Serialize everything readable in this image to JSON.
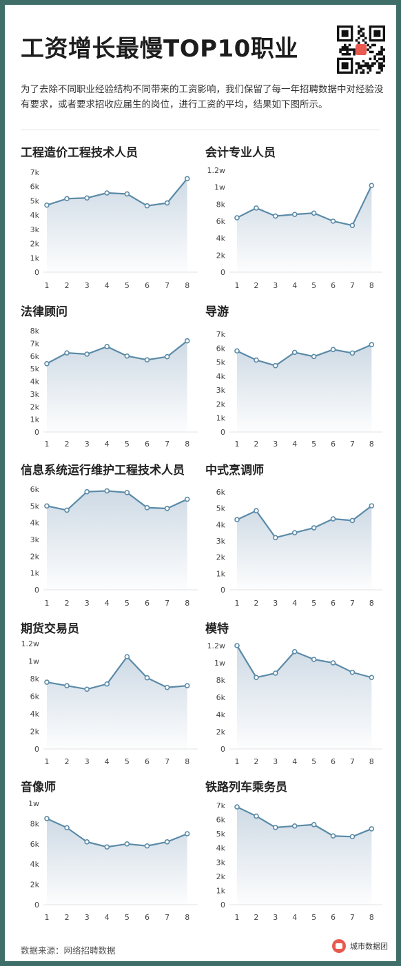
{
  "header": {
    "title": "工资增长最慢TOP10职业",
    "intro": "为了去除不同职业经验结构不同带来的工资影响，我们保留了每一年招聘数据中对经验没有要求，或者要求招收应届生的岗位，进行工资的平均，结果如下图所示。"
  },
  "footer": {
    "source": "数据来源：网络招聘数据",
    "brand": "城市数据团"
  },
  "colors": {
    "line": "#5a8aa8",
    "fill_top": "#c9d6e2",
    "frame": "#3f6e69"
  },
  "chart_data": [
    {
      "type": "area",
      "title": "工程造价工程技术人员",
      "x": [
        1,
        2,
        3,
        4,
        5,
        6,
        7,
        8
      ],
      "values": [
        4700,
        5150,
        5200,
        5550,
        5480,
        4650,
        4850,
        6550
      ],
      "ylim": [
        0,
        7000
      ],
      "yticks": [
        0,
        1000,
        2000,
        3000,
        4000,
        5000,
        6000,
        7000
      ],
      "ytick_labels": [
        "0",
        "1k",
        "2k",
        "3k",
        "4k",
        "5k",
        "6k",
        "7k"
      ],
      "grid": false
    },
    {
      "type": "area",
      "title": "会计专业人员",
      "x": [
        1,
        2,
        3,
        4,
        5,
        6,
        7,
        8
      ],
      "values": [
        6400,
        7550,
        6600,
        6800,
        6950,
        6000,
        5500,
        10200
      ],
      "ylim": [
        0,
        12000
      ],
      "yticks": [
        0,
        2000,
        4000,
        6000,
        8000,
        10000,
        12000
      ],
      "ytick_labels": [
        "0",
        "2k",
        "4k",
        "6k",
        "8k",
        "1w",
        "1.2w"
      ],
      "grid": false
    },
    {
      "type": "area",
      "title": "法律顾问",
      "x": [
        1,
        2,
        3,
        4,
        5,
        6,
        7,
        8
      ],
      "values": [
        5400,
        6250,
        6150,
        6750,
        6000,
        5700,
        5950,
        7200
      ],
      "ylim": [
        0,
        8000
      ],
      "yticks": [
        0,
        1000,
        2000,
        3000,
        4000,
        5000,
        6000,
        7000,
        8000
      ],
      "ytick_labels": [
        "0",
        "1k",
        "2k",
        "3k",
        "4k",
        "5k",
        "6k",
        "7k",
        "8k"
      ],
      "grid": false
    },
    {
      "type": "area",
      "title": "导游",
      "x": [
        1,
        2,
        3,
        4,
        5,
        6,
        7,
        8
      ],
      "values": [
        5800,
        5150,
        4750,
        5700,
        5400,
        5900,
        5650,
        6250
      ],
      "ylim": [
        0,
        7000
      ],
      "yticks": [
        0,
        1000,
        2000,
        3000,
        4000,
        5000,
        6000,
        7000
      ],
      "ytick_labels": [
        "0",
        "1k",
        "2k",
        "3k",
        "4k",
        "5k",
        "6k",
        "7k"
      ],
      "grid": false
    },
    {
      "type": "area",
      "title": "信息系统运行维护工程技术人员",
      "x": [
        1,
        2,
        3,
        4,
        5,
        6,
        7,
        8
      ],
      "values": [
        5000,
        4750,
        5850,
        5900,
        5800,
        4900,
        4850,
        5400
      ],
      "ylim": [
        0,
        6000
      ],
      "yticks": [
        0,
        1000,
        2000,
        3000,
        4000,
        5000,
        6000
      ],
      "ytick_labels": [
        "0",
        "1k",
        "2k",
        "3k",
        "4k",
        "5k",
        "6k"
      ],
      "grid": false
    },
    {
      "type": "area",
      "title": "中式烹调师",
      "x": [
        1,
        2,
        3,
        4,
        5,
        6,
        7,
        8
      ],
      "values": [
        4300,
        4850,
        3200,
        3500,
        3800,
        4350,
        4250,
        5150
      ],
      "ylim": [
        0,
        6000
      ],
      "yticks": [
        0,
        1000,
        2000,
        3000,
        4000,
        5000,
        6000
      ],
      "ytick_labels": [
        "0",
        "1k",
        "2k",
        "3k",
        "4k",
        "5k",
        "6k"
      ],
      "grid": false
    },
    {
      "type": "area",
      "title": "期货交易员",
      "x": [
        1,
        2,
        3,
        4,
        5,
        6,
        7,
        8
      ],
      "values": [
        7600,
        7200,
        6800,
        7400,
        10500,
        8100,
        7000,
        7200
      ],
      "ylim": [
        0,
        12000
      ],
      "yticks": [
        0,
        2000,
        4000,
        6000,
        8000,
        10000,
        12000
      ],
      "ytick_labels": [
        "0",
        "2k",
        "4k",
        "6k",
        "8k",
        "1w",
        "1.2w"
      ],
      "grid": false
    },
    {
      "type": "area",
      "title": "模特",
      "x": [
        1,
        2,
        3,
        4,
        5,
        6,
        7,
        8
      ],
      "values": [
        12000,
        8300,
        8800,
        11300,
        10400,
        10000,
        8900,
        8300
      ],
      "ylim": [
        0,
        12000
      ],
      "yticks": [
        0,
        2000,
        4000,
        6000,
        8000,
        10000,
        12000
      ],
      "ytick_labels": [
        "0",
        "2k",
        "4k",
        "6k",
        "8k",
        "1w",
        "1.2w"
      ],
      "grid": false
    },
    {
      "type": "area",
      "title": "音像师",
      "x": [
        1,
        2,
        3,
        4,
        5,
        6,
        7,
        8
      ],
      "values": [
        8500,
        7600,
        6200,
        5700,
        6000,
        5800,
        6200,
        7000
      ],
      "ylim": [
        0,
        10000
      ],
      "yticks": [
        0,
        2000,
        4000,
        6000,
        8000,
        10000
      ],
      "ytick_labels": [
        "0",
        "2k",
        "4k",
        "6k",
        "8k",
        "1w"
      ],
      "grid": false
    },
    {
      "type": "area",
      "title": "铁路列车乘务员",
      "x": [
        1,
        2,
        3,
        4,
        5,
        6,
        7,
        8
      ],
      "values": [
        6900,
        6250,
        5450,
        5550,
        5650,
        4850,
        4800,
        5350
      ],
      "ylim": [
        0,
        7000
      ],
      "yticks": [
        0,
        1000,
        2000,
        3000,
        4000,
        5000,
        6000,
        7000
      ],
      "ytick_labels": [
        "0",
        "1k",
        "2k",
        "3k",
        "4k",
        "5k",
        "6k",
        "7k"
      ],
      "grid": false
    }
  ]
}
